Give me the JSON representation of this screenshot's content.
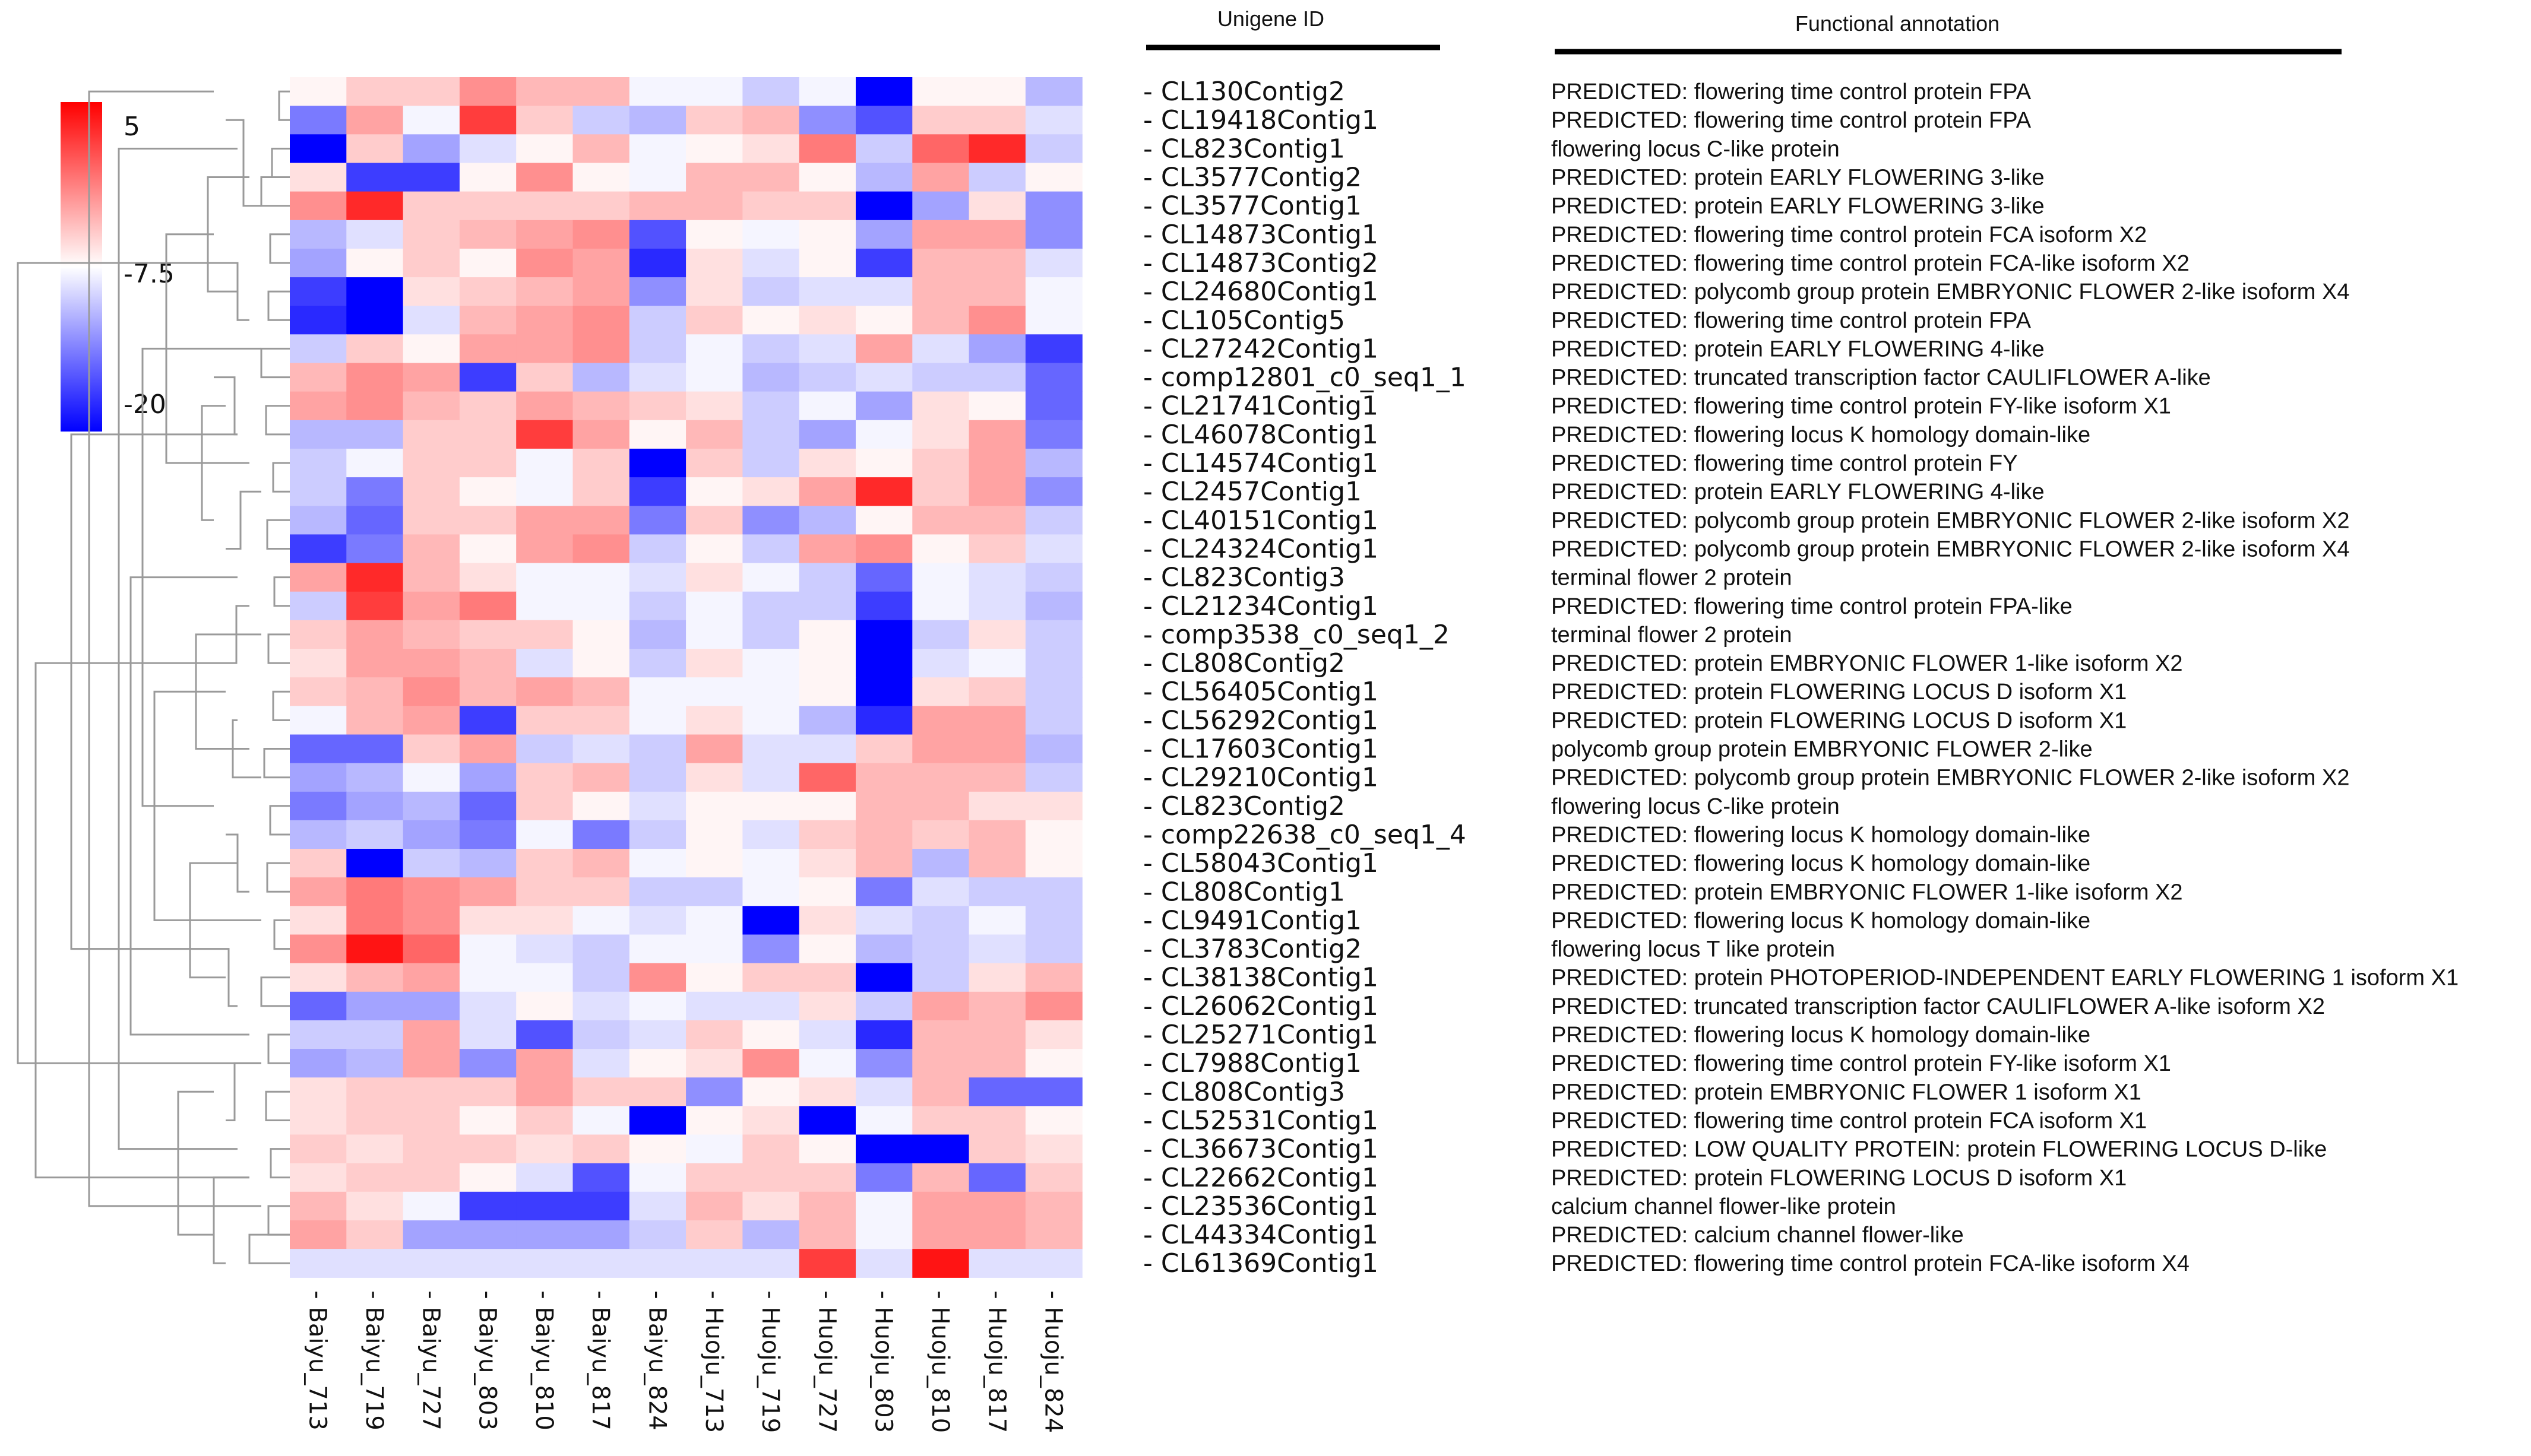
{
  "chart_data": {
    "type": "heatmap",
    "header_unigene": "Unigene ID",
    "header_annotation": "Functional annotation",
    "columns": [
      "Baiyu_713",
      "Baiyu_719",
      "Baiyu_727",
      "Baiyu_803",
      "Baiyu_810",
      "Baiyu_817",
      "Baiyu_824",
      "Huoju_713",
      "Huoju_719",
      "Huoju_727",
      "Huoju_803",
      "Huoju_810",
      "Huoju_817",
      "Huoju_824"
    ],
    "rows": [
      {
        "id": "CL130Contig2",
        "annotation": "PREDICTED: flowering time control protein FPA"
      },
      {
        "id": "CL19418Contig1",
        "annotation": "PREDICTED: flowering time control protein FPA"
      },
      {
        "id": "CL823Contig1",
        "annotation": "flowering locus C-like protein"
      },
      {
        "id": "CL3577Contig2",
        "annotation": "PREDICTED: protein EARLY FLOWERING 3-like"
      },
      {
        "id": "CL3577Contig1",
        "annotation": "PREDICTED: protein EARLY FLOWERING 3-like"
      },
      {
        "id": "CL14873Contig1",
        "annotation": "PREDICTED: flowering time control protein FCA isoform X2"
      },
      {
        "id": "CL14873Contig2",
        "annotation": "PREDICTED: flowering time control protein FCA-like isoform X2"
      },
      {
        "id": "CL24680Contig1",
        "annotation": "PREDICTED: polycomb group protein EMBRYONIC FLOWER 2-like isoform X4"
      },
      {
        "id": "CL105Contig5",
        "annotation": "PREDICTED: flowering time control protein FPA"
      },
      {
        "id": "CL27242Contig1",
        "annotation": "PREDICTED: protein EARLY FLOWERING 4-like"
      },
      {
        "id": "comp12801_c0_seq1_1",
        "annotation": "PREDICTED: truncated transcription factor CAULIFLOWER A-like"
      },
      {
        "id": "CL21741Contig1",
        "annotation": "PREDICTED: flowering time control protein FY-like isoform X1"
      },
      {
        "id": "CL46078Contig1",
        "annotation": "PREDICTED: flowering locus K homology domain-like"
      },
      {
        "id": "CL14574Contig1",
        "annotation": "PREDICTED: flowering time control protein FY"
      },
      {
        "id": "CL2457Contig1",
        "annotation": "PREDICTED: protein EARLY FLOWERING 4-like"
      },
      {
        "id": "CL40151Contig1",
        "annotation": "PREDICTED: polycomb group protein EMBRYONIC FLOWER 2-like isoform X2"
      },
      {
        "id": "CL24324Contig1",
        "annotation": "PREDICTED: polycomb group protein EMBRYONIC FLOWER 2-like isoform X4"
      },
      {
        "id": "CL823Contig3",
        "annotation": "terminal flower 2 protein"
      },
      {
        "id": "CL21234Contig1",
        "annotation": "PREDICTED: flowering time control protein FPA-like"
      },
      {
        "id": "comp3538_c0_seq1_2",
        "annotation": "terminal flower 2 protein"
      },
      {
        "id": "CL808Contig2",
        "annotation": "PREDICTED: protein EMBRYONIC FLOWER 1-like isoform X2"
      },
      {
        "id": "CL56405Contig1",
        "annotation": "PREDICTED: protein FLOWERING LOCUS D isoform X1"
      },
      {
        "id": "CL56292Contig1",
        "annotation": "PREDICTED: protein FLOWERING LOCUS D isoform X1"
      },
      {
        "id": "CL17603Contig1",
        "annotation": "polycomb group protein EMBRYONIC FLOWER 2-like"
      },
      {
        "id": "CL29210Contig1",
        "annotation": "PREDICTED: polycomb group protein EMBRYONIC FLOWER 2-like isoform X2"
      },
      {
        "id": "CL823Contig2",
        "annotation": "flowering locus C-like protein"
      },
      {
        "id": "comp22638_c0_seq1_4",
        "annotation": "PREDICTED: flowering locus K homology domain-like"
      },
      {
        "id": "CL58043Contig1",
        "annotation": "PREDICTED: flowering locus K homology domain-like"
      },
      {
        "id": "CL808Contig1",
        "annotation": "PREDICTED: protein EMBRYONIC FLOWER 1-like isoform X2"
      },
      {
        "id": "CL9491Contig1",
        "annotation": "PREDICTED: flowering locus K homology domain-like"
      },
      {
        "id": "CL3783Contig2",
        "annotation": "flowering locus T like protein"
      },
      {
        "id": "CL38138Contig1",
        "annotation": "PREDICTED: protein PHOTOPERIOD-INDEPENDENT EARLY FLOWERING 1 isoform X1"
      },
      {
        "id": "CL26062Contig1",
        "annotation": "PREDICTED: truncated transcription factor CAULIFLOWER A-like isoform X2"
      },
      {
        "id": "CL25271Contig1",
        "annotation": "PREDICTED: flowering locus K homology domain-like"
      },
      {
        "id": "CL7988Contig1",
        "annotation": "PREDICTED: flowering time control protein FY-like isoform X1"
      },
      {
        "id": "CL808Contig3",
        "annotation": "PREDICTED: protein EMBRYONIC FLOWER 1 isoform X1"
      },
      {
        "id": "CL52531Contig1",
        "annotation": "PREDICTED: flowering time control protein FCA isoform X1"
      },
      {
        "id": "CL36673Contig1",
        "annotation": "PREDICTED: LOW QUALITY PROTEIN: protein FLOWERING LOCUS D-like"
      },
      {
        "id": "CL22662Contig1",
        "annotation": "PREDICTED: protein FLOWERING LOCUS D isoform X1"
      },
      {
        "id": "CL23536Contig1",
        "annotation": "calcium channel flower-like protein"
      },
      {
        "id": "CL44334Contig1",
        "annotation": "PREDICTED: calcium channel flower-like"
      },
      {
        "id": "CL61369Contig1",
        "annotation": "PREDICTED: flowering time control protein FCA-like isoform X4"
      }
    ],
    "values": [
      [
        -7,
        -5,
        -5,
        -2,
        -4,
        -4,
        -8,
        -8,
        -10,
        -8,
        -20,
        -7,
        -7,
        -11
      ],
      [
        -14,
        -3,
        -8,
        2,
        -5,
        -10,
        -11,
        -5,
        -4,
        -13,
        -16,
        -5,
        -5,
        -9
      ],
      [
        -20,
        -5,
        -12,
        -9,
        -7,
        -4,
        -8,
        -7,
        -6,
        -1,
        -10,
        0,
        3,
        -10
      ],
      [
        -6,
        -17,
        -17,
        -7,
        -2,
        -7,
        -8,
        -4,
        -4,
        -7,
        -11,
        -3,
        -10,
        -7
      ],
      [
        -2,
        3,
        -5,
        -5,
        -5,
        -5,
        -4,
        -4,
        -5,
        -5,
        -20,
        -12,
        -6,
        -13
      ],
      [
        -11,
        -9,
        -5,
        -4,
        -3,
        -2,
        -16,
        -7,
        -8,
        -7,
        -12,
        -3,
        -3,
        -13
      ],
      [
        -12,
        -7,
        -5,
        -7,
        -2,
        -3,
        -18,
        -6,
        -9,
        -7,
        -17,
        -4,
        -4,
        -9
      ],
      [
        -17,
        -20,
        -6,
        -5,
        -4,
        -3,
        -13,
        -6,
        -10,
        -9,
        -9,
        -4,
        -4,
        -8
      ],
      [
        -18,
        -20,
        -9,
        -4,
        -3,
        -2,
        -10,
        -5,
        -7,
        -6,
        -7,
        -4,
        -2,
        -8
      ],
      [
        -10,
        -5,
        -7,
        -3,
        -3,
        -2,
        -10,
        -8,
        -10,
        -9,
        -3,
        -9,
        -12,
        -17
      ],
      [
        -4,
        -2,
        -3,
        -17,
        -5,
        -11,
        -9,
        -8,
        -11,
        -10,
        -9,
        -10,
        -10,
        -15
      ],
      [
        -3,
        -2,
        -4,
        -5,
        -3,
        -4,
        -5,
        -6,
        -10,
        -8,
        -12,
        -6,
        -7,
        -15
      ],
      [
        -11,
        -11,
        -5,
        -5,
        2,
        -3,
        -7,
        -4,
        -10,
        -12,
        -8,
        -6,
        -3,
        -14
      ],
      [
        -10,
        -8,
        -5,
        -5,
        -8,
        -5,
        -20,
        -5,
        -10,
        -6,
        -7,
        -5,
        -3,
        -11
      ],
      [
        -10,
        -14,
        -5,
        -7,
        -8,
        -5,
        -17,
        -7,
        -6,
        -3,
        3,
        -5,
        -3,
        -13
      ],
      [
        -11,
        -15,
        -5,
        -5,
        -3,
        -3,
        -14,
        -5,
        -13,
        -11,
        -7,
        -4,
        -4,
        -10
      ],
      [
        -17,
        -14,
        -4,
        -7,
        -3,
        -2,
        -10,
        -7,
        -10,
        -3,
        -2,
        -7,
        -5,
        -9
      ],
      [
        -3,
        3,
        -4,
        -6,
        -8,
        -8,
        -9,
        -6,
        -8,
        -10,
        -15,
        -8,
        -9,
        -10
      ],
      [
        -10,
        2,
        -3,
        -1,
        -8,
        -8,
        -10,
        -8,
        -10,
        -10,
        -17,
        -8,
        -9,
        -11
      ],
      [
        -5,
        -3,
        -4,
        -5,
        -5,
        -7,
        -11,
        -8,
        -10,
        -7,
        -20,
        -10,
        -6,
        -10
      ],
      [
        -6,
        -3,
        -3,
        -4,
        -9,
        -7,
        -10,
        -6,
        -8,
        -7,
        -20,
        -9,
        -8,
        -10
      ],
      [
        -5,
        -4,
        -2,
        -4,
        -3,
        -4,
        -8,
        -8,
        -8,
        -7,
        -20,
        -6,
        -5,
        -10
      ],
      [
        -8,
        -4,
        -3,
        -17,
        -5,
        -5,
        -8,
        -6,
        -8,
        -11,
        -18,
        -3,
        -3,
        -10
      ],
      [
        -15,
        -15,
        -5,
        -3,
        -10,
        -9,
        -10,
        -3,
        -9,
        -9,
        -5,
        -3,
        -3,
        -11
      ],
      [
        -12,
        -11,
        -8,
        -12,
        -5,
        -4,
        -10,
        -6,
        -9,
        0,
        -4,
        -4,
        -4,
        -10
      ],
      [
        -14,
        -12,
        -11,
        -15,
        -5,
        -7,
        -9,
        -7,
        -7,
        -7,
        -4,
        -4,
        -6,
        -6
      ],
      [
        -11,
        -10,
        -12,
        -14,
        -8,
        -14,
        -10,
        -7,
        -9,
        -5,
        -4,
        -5,
        -4,
        -7
      ],
      [
        -5,
        -20,
        -10,
        -11,
        -5,
        -4,
        -8,
        -7,
        -8,
        -6,
        -4,
        -11,
        -4,
        -7
      ],
      [
        -3,
        -1,
        -2,
        -3,
        -5,
        -5,
        -10,
        -10,
        -8,
        -7,
        -14,
        -9,
        -10,
        -10
      ],
      [
        -6,
        -1,
        -2,
        -6,
        -6,
        -8,
        -9,
        -8,
        -20,
        -6,
        -9,
        -10,
        -8,
        -10
      ],
      [
        -2,
        4,
        0,
        -8,
        -9,
        -10,
        -8,
        -8,
        -13,
        -7,
        -11,
        -10,
        -9,
        -10
      ],
      [
        -6,
        -4,
        -3,
        -8,
        -8,
        -10,
        -2,
        -7,
        -5,
        -5,
        -20,
        -10,
        -6,
        -4
      ],
      [
        -15,
        -12,
        -12,
        -9,
        -7,
        -9,
        -8,
        -9,
        -9,
        -6,
        -10,
        -3,
        -4,
        -2
      ],
      [
        -10,
        -10,
        -3,
        -9,
        -16,
        -10,
        -9,
        -5,
        -7,
        -9,
        -18,
        -4,
        -4,
        -6
      ],
      [
        -12,
        -11,
        -3,
        -13,
        -3,
        -9,
        -7,
        -6,
        -2,
        -8,
        -13,
        -4,
        -4,
        -7
      ],
      [
        -6,
        -5,
        -5,
        -5,
        -3,
        -5,
        -5,
        -13,
        -7,
        -6,
        -9,
        -4,
        -15,
        -15
      ],
      [
        -6,
        -5,
        -5,
        -7,
        -5,
        -8,
        -20,
        -7,
        -6,
        -20,
        -8,
        -5,
        -5,
        -7
      ],
      [
        -5,
        -6,
        -5,
        -5,
        -6,
        -5,
        -7,
        -8,
        -5,
        -7,
        -20,
        -20,
        -5,
        -6
      ],
      [
        -6,
        -5,
        -5,
        -7,
        -9,
        -16,
        -8,
        -5,
        -5,
        -5,
        -14,
        -4,
        -15,
        -5
      ],
      [
        -4,
        -6,
        -8,
        -17,
        -17,
        -17,
        -9,
        -4,
        -6,
        -4,
        -8,
        -3,
        -3,
        -4
      ],
      [
        -3,
        -5,
        -12,
        -12,
        -12,
        -12,
        -10,
        -5,
        -11,
        -4,
        -8,
        -3,
        -3,
        -4
      ],
      [
        -9,
        -9,
        -9,
        -9,
        -9,
        -9,
        -9,
        -9,
        -9,
        2,
        -9,
        4,
        -9,
        -9
      ]
    ],
    "color_scale": {
      "min": -20,
      "mid": -7.5,
      "max": 5,
      "ticks": [
        "5",
        "-7.5",
        "-20"
      ],
      "low_color": "#0000ff",
      "mid_color": "#ffffff",
      "high_color": "#ff0000"
    }
  }
}
